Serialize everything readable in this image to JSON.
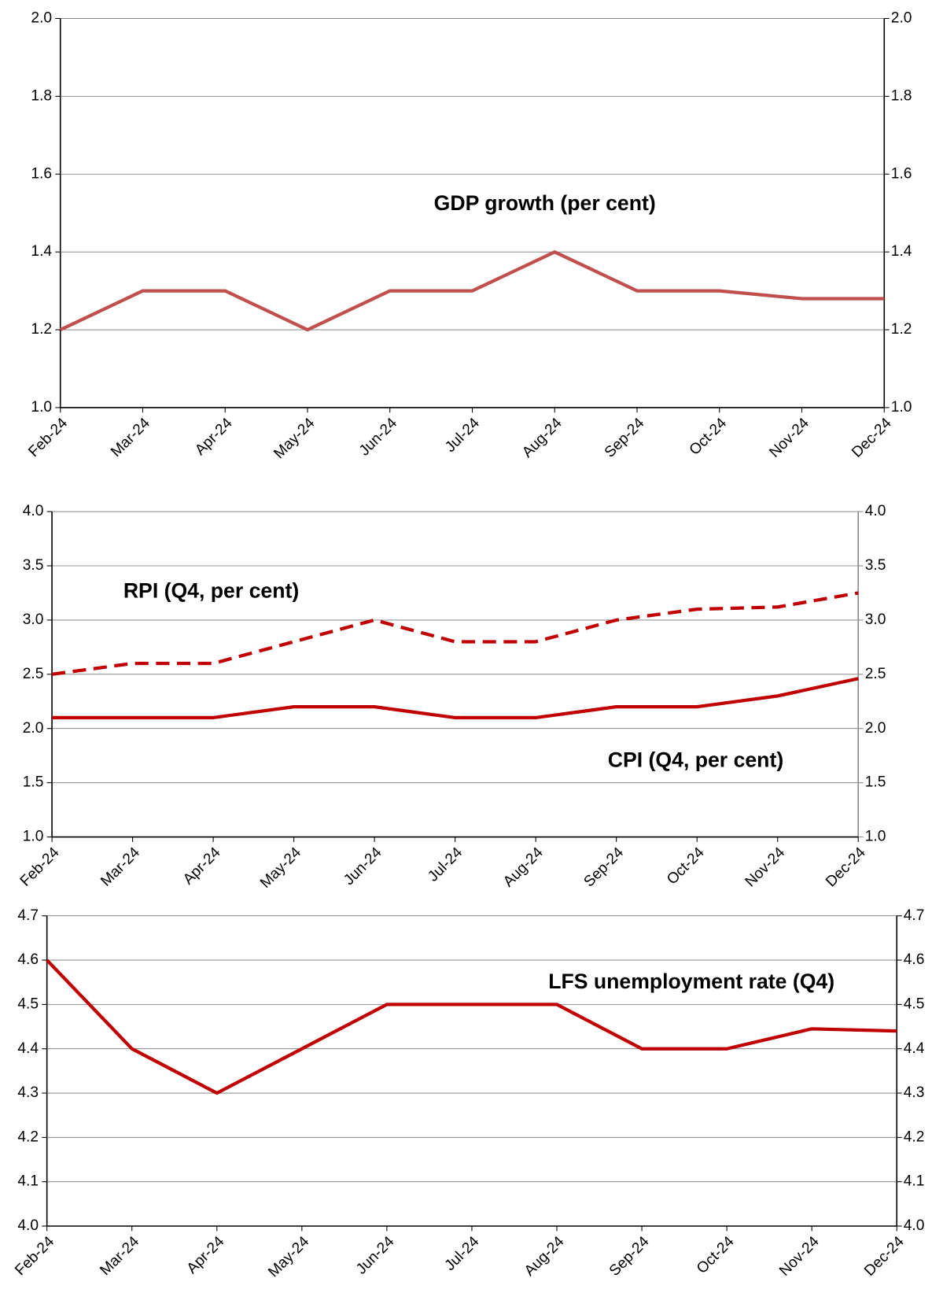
{
  "chart_data": [
    {
      "type": "line",
      "title": "GDP growth (per cent)",
      "categories": [
        "Feb-24",
        "Mar-24",
        "Apr-24",
        "May-24",
        "Jun-24",
        "Jul-24",
        "Aug-24",
        "Sep-24",
        "Oct-24",
        "Nov-24",
        "Dec-24"
      ],
      "series": [
        {
          "color": "#c0504d",
          "values": [
            1.2,
            1.3,
            1.3,
            1.2,
            1.3,
            1.3,
            1.4,
            1.3,
            1.3,
            1.28,
            1.28
          ]
        }
      ],
      "ylim": [
        1,
        2
      ],
      "yticks": [
        {
          "value": 1,
          "label": "1.0"
        },
        1.2,
        1.4,
        1.6,
        1.8,
        {
          "value": 2,
          "label": "2.0"
        }
      ],
      "grid": true
    },
    {
      "type": "line",
      "categories": [
        "Feb-24",
        "Mar-24",
        "Apr-24",
        "May-24",
        "Jun-24",
        "Jul-24",
        "Aug-24",
        "Sep-24",
        "Oct-24",
        "Nov-24",
        "Dec-24"
      ],
      "series": [
        {
          "name": "RPI (Q4, per cent)",
          "color": "#c00000",
          "dash": "dashed",
          "values": [
            2.5,
            2.6,
            2.6,
            2.8,
            3.0,
            2.8,
            2.8,
            3.0,
            3.1,
            3.12,
            3.25
          ]
        },
        {
          "name": "CPI (Q4, per cent)",
          "color": "#c00000",
          "dash": "solid",
          "values": [
            2.1,
            2.1,
            2.1,
            2.2,
            2.2,
            2.1,
            2.1,
            2.2,
            2.2,
            2.3,
            2.46
          ]
        }
      ],
      "ylim": [
        1,
        4
      ],
      "yticks": [
        {
          "value": 1,
          "label": "1.0"
        },
        1.5,
        {
          "value": 2,
          "label": "2.0"
        },
        2.5,
        {
          "value": 3,
          "label": "3.0"
        },
        3.5,
        {
          "value": 4,
          "label": "4.0"
        }
      ],
      "grid": true
    },
    {
      "type": "line",
      "title": "LFS unemployment rate (Q4)",
      "categories": [
        "Feb-24",
        "Mar-24",
        "Apr-24",
        "May-24",
        "Jun-24",
        "Jul-24",
        "Aug-24",
        "Sep-24",
        "Oct-24",
        "Nov-24",
        "Dec-24"
      ],
      "series": [
        {
          "color": "#c00000",
          "values": [
            4.6,
            4.4,
            4.3,
            4.4,
            4.5,
            4.5,
            4.5,
            4.4,
            4.4,
            4.445,
            4.44
          ]
        }
      ],
      "ylim": [
        4.0,
        4.7
      ],
      "yticks": [
        {
          "value": 4,
          "label": "4.0"
        },
        4.1,
        4.2,
        4.3,
        4.4,
        4.5,
        4.6,
        4.7
      ],
      "grid": true
    }
  ]
}
